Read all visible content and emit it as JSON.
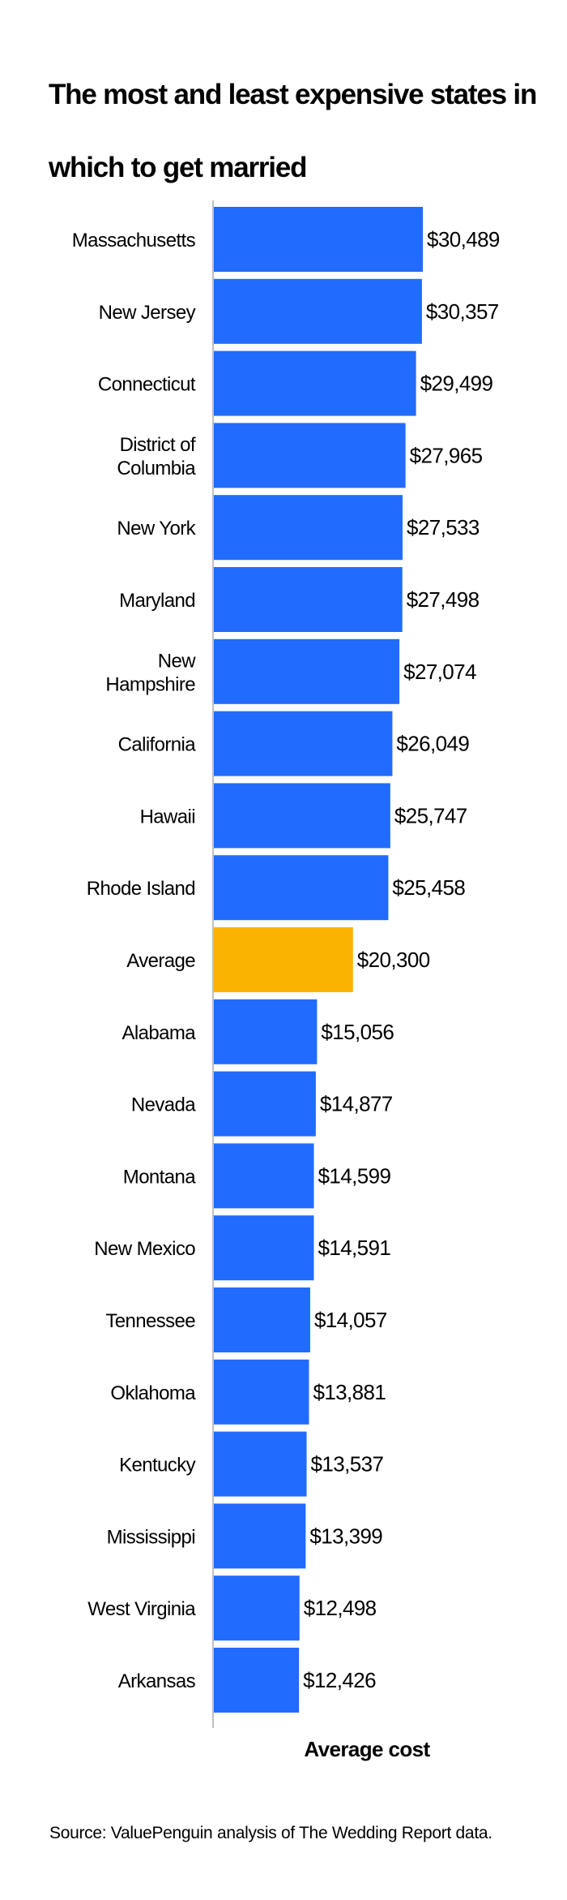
{
  "chart_data": {
    "type": "bar",
    "orientation": "horizontal",
    "title": "The most and least expensive states in which to get married",
    "xlabel": "Average cost",
    "ylabel": "",
    "xlim": [
      0,
      30489
    ],
    "grid": false,
    "categories": [
      "Massachusetts",
      "New Jersey",
      "Connecticut",
      "District of Columbia",
      "New York",
      "Maryland",
      "New Hampshire",
      "California",
      "Hawaii",
      "Rhode Island",
      "Average",
      "Alabama",
      "Nevada",
      "Montana",
      "New Mexico",
      "Tennessee",
      "Oklahoma",
      "Kentucky",
      "Mississippi",
      "West Virginia",
      "Arkansas"
    ],
    "label_lines": [
      [
        "Massachusetts"
      ],
      [
        "New Jersey"
      ],
      [
        "Connecticut"
      ],
      [
        "District of",
        "Columbia"
      ],
      [
        "New York"
      ],
      [
        "Maryland"
      ],
      [
        "New",
        "Hampshire"
      ],
      [
        "California"
      ],
      [
        "Hawaii"
      ],
      [
        "Rhode Island"
      ],
      [
        "Average"
      ],
      [
        "Alabama"
      ],
      [
        "Nevada"
      ],
      [
        "Montana"
      ],
      [
        "New Mexico"
      ],
      [
        "Tennessee"
      ],
      [
        "Oklahoma"
      ],
      [
        "Kentucky"
      ],
      [
        "Mississippi"
      ],
      [
        "West Virginia"
      ],
      [
        "Arkansas"
      ]
    ],
    "values": [
      30489,
      30357,
      29499,
      27965,
      27533,
      27498,
      27074,
      26049,
      25747,
      25458,
      20300,
      15056,
      14877,
      14599,
      14591,
      14057,
      13881,
      13537,
      13399,
      12498,
      12426
    ],
    "data_labels": [
      "$30,489",
      "$30,357",
      "$29,499",
      "$27,965",
      "$27,533",
      "$27,498",
      "$27,074",
      "$26,049",
      "$25,747",
      "$25,458",
      "$20,300",
      "$15,056",
      "$14,877",
      "$14,599",
      "$14,591",
      "$14,057",
      "$13,881",
      "$13,537",
      "$13,399",
      "$12,498",
      "$12,426"
    ],
    "highlight_category": "Average",
    "colors": {
      "bar": "#216BFE",
      "highlight": "#F9B300",
      "axis": "#BFBFBF",
      "text": "#000000"
    }
  },
  "source": "Source: ValuePenguin analysis of The Wedding Report data."
}
